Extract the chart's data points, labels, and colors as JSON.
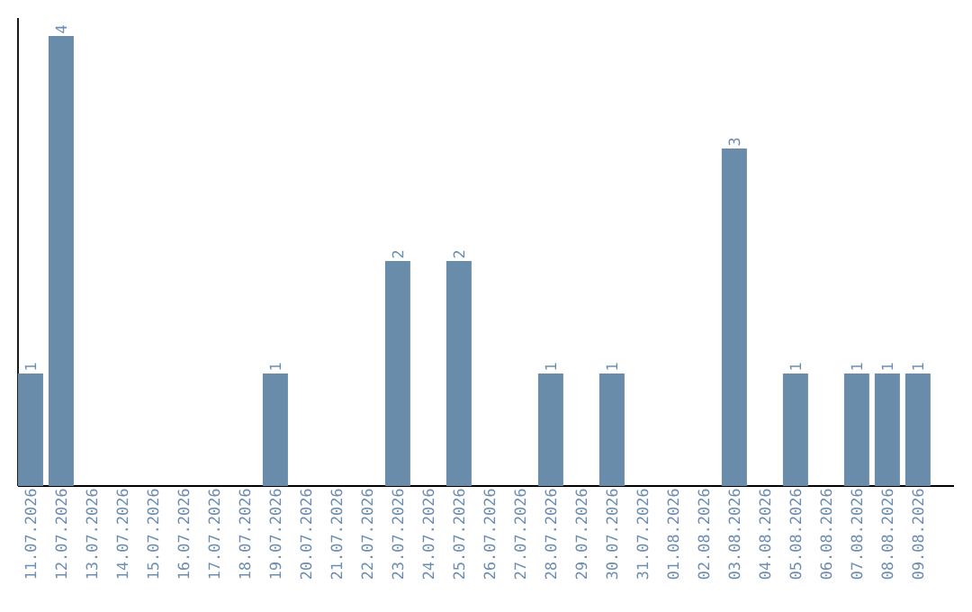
{
  "chart_data": {
    "type": "bar",
    "color": "#6a8cab",
    "categories": [
      "11.07.2026",
      "12.07.2026",
      "13.07.2026",
      "14.07.2026",
      "15.07.2026",
      "16.07.2026",
      "17.07.2026",
      "18.07.2026",
      "19.07.2026",
      "20.07.2026",
      "21.07.2026",
      "22.07.2026",
      "23.07.2026",
      "24.07.2026",
      "25.07.2026",
      "26.07.2026",
      "27.07.2026",
      "28.07.2026",
      "29.07.2026",
      "30.07.2026",
      "31.07.2026",
      "01.08.2026",
      "02.08.2026",
      "03.08.2026",
      "04.08.2026",
      "05.08.2026",
      "06.08.2026",
      "07.08.2026",
      "08.08.2026",
      "09.08.2026"
    ],
    "values": [
      1,
      4,
      0,
      0,
      0,
      0,
      0,
      0,
      1,
      0,
      0,
      0,
      2,
      0,
      2,
      0,
      0,
      1,
      0,
      1,
      0,
      0,
      0,
      3,
      0,
      1,
      0,
      1,
      1,
      1
    ],
    "value_labels": [
      "1",
      "4",
      null,
      null,
      null,
      null,
      null,
      null,
      "1",
      null,
      null,
      null,
      "2",
      null,
      "2",
      null,
      null,
      "1",
      null,
      "1",
      null,
      null,
      null,
      "3",
      null,
      "1",
      null,
      "1",
      "1",
      "1"
    ],
    "ylim": [
      0,
      4.16
    ],
    "tick_labels": "x",
    "grid": false
  }
}
